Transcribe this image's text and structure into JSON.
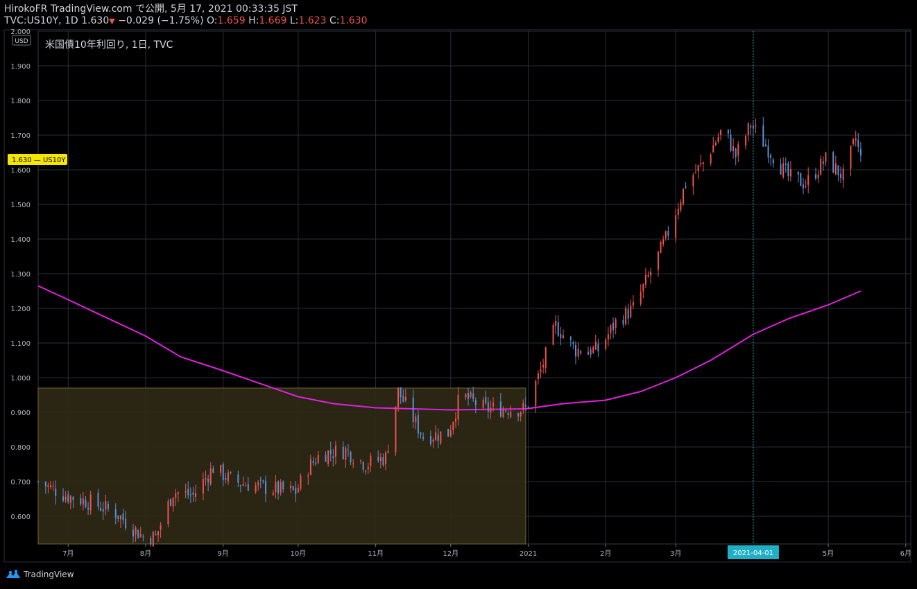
{
  "header": {
    "publish_line": "HirokoFR TradingView.com で公開, 5月 17, 2021 00:33:35 JST",
    "symbol_interval": "TVC:US10Y, 1D",
    "last_price": "1.630",
    "change": "−0.029 (−1.75%)",
    "o_label": "O:",
    "o_value": "1.659",
    "h_label": "H:",
    "h_value": "1.669",
    "l_label": "L:",
    "l_value": "1.623",
    "c_label": "C:",
    "c_value": "1.630"
  },
  "footer": {
    "brand": "TradingView",
    "logo_icon": "tradingview-logo-icon"
  },
  "colors": {
    "up": "#ef5350",
    "down": "#5b8fd6",
    "ma": "#e020e0",
    "box_fill": "#2d2815",
    "box_border": "#6e6634",
    "price_tag": "#f5e600",
    "crosshair_tag": "#1fb0c8"
  },
  "chart_data": {
    "type": "candlestick",
    "title": "米国債10年利回り, 1日, TVC",
    "currency_badge": "USD",
    "price_tag": {
      "value": "1.630",
      "symbol": "US10Y"
    },
    "ylim": [
      0.52,
      2.0
    ],
    "yticks": [
      "0.600",
      "0.700",
      "0.800",
      "0.900",
      "1.000",
      "1.100",
      "1.200",
      "1.300",
      "1.400",
      "1.500",
      "1.600",
      "1.700",
      "1.800",
      "1.900",
      "2.000"
    ],
    "xlim": [
      "2020-06-19",
      "2021-06-03"
    ],
    "xticks": [
      {
        "date": "2020-07-01",
        "label": "7月"
      },
      {
        "date": "2020-08-01",
        "label": "8月"
      },
      {
        "date": "2020-09-01",
        "label": "9月"
      },
      {
        "date": "2020-10-01",
        "label": "10月"
      },
      {
        "date": "2020-11-01",
        "label": "11月"
      },
      {
        "date": "2020-12-01",
        "label": "12月"
      },
      {
        "date": "2021-01-01",
        "label": "2021"
      },
      {
        "date": "2021-02-01",
        "label": "2月"
      },
      {
        "date": "2021-03-01",
        "label": "3月"
      },
      {
        "date": "2021-05-01",
        "label": "5月"
      },
      {
        "date": "2021-06-01",
        "label": "6月"
      }
    ],
    "crosshair": {
      "date": "2021-04-01",
      "label": "2021-04-01"
    },
    "range_box": {
      "from": "2020-06-19",
      "to": "2020-12-31",
      "low": 0.52,
      "high": 0.97
    },
    "close_anchors": [
      [
        "2020-06-19",
        0.7
      ],
      [
        "2020-06-30",
        0.66
      ],
      [
        "2020-07-10",
        0.64
      ],
      [
        "2020-07-20",
        0.61
      ],
      [
        "2020-07-31",
        0.54
      ],
      [
        "2020-08-05",
        0.54
      ],
      [
        "2020-08-12",
        0.67
      ],
      [
        "2020-08-20",
        0.66
      ],
      [
        "2020-08-28",
        0.74
      ],
      [
        "2020-09-05",
        0.7
      ],
      [
        "2020-09-20",
        0.68
      ],
      [
        "2020-09-30",
        0.67
      ],
      [
        "2020-10-05",
        0.74
      ],
      [
        "2020-10-10",
        0.78
      ],
      [
        "2020-10-20",
        0.79
      ],
      [
        "2020-10-28",
        0.75
      ],
      [
        "2020-11-05",
        0.77
      ],
      [
        "2020-11-10",
        0.96
      ],
      [
        "2020-11-20",
        0.83
      ],
      [
        "2020-11-30",
        0.84
      ],
      [
        "2020-12-05",
        0.95
      ],
      [
        "2020-12-15",
        0.91
      ],
      [
        "2020-12-31",
        0.91
      ],
      [
        "2021-01-06",
        1.02
      ],
      [
        "2021-01-12",
        1.15
      ],
      [
        "2021-01-20",
        1.08
      ],
      [
        "2021-01-29",
        1.08
      ],
      [
        "2021-02-05",
        1.16
      ],
      [
        "2021-02-12",
        1.2
      ],
      [
        "2021-02-18",
        1.29
      ],
      [
        "2021-02-25",
        1.4
      ],
      [
        "2021-03-05",
        1.56
      ],
      [
        "2021-03-12",
        1.62
      ],
      [
        "2021-03-20",
        1.72
      ],
      [
        "2021-03-25",
        1.64
      ],
      [
        "2021-03-31",
        1.73
      ],
      [
        "2021-04-06",
        1.67
      ],
      [
        "2021-04-15",
        1.58
      ],
      [
        "2021-04-22",
        1.56
      ],
      [
        "2021-04-30",
        1.63
      ],
      [
        "2021-05-07",
        1.58
      ],
      [
        "2021-05-12",
        1.69
      ],
      [
        "2021-05-14",
        1.63
      ]
    ],
    "moving_average": [
      [
        "2020-06-19",
        1.265
      ],
      [
        "2020-07-01",
        1.225
      ],
      [
        "2020-08-01",
        1.12
      ],
      [
        "2020-08-15",
        1.06
      ],
      [
        "2020-09-01",
        1.02
      ],
      [
        "2020-10-01",
        0.945
      ],
      [
        "2020-10-15",
        0.925
      ],
      [
        "2020-11-01",
        0.913
      ],
      [
        "2020-12-01",
        0.907
      ],
      [
        "2020-12-31",
        0.91
      ],
      [
        "2021-01-15",
        0.925
      ],
      [
        "2021-02-01",
        0.935
      ],
      [
        "2021-02-15",
        0.96
      ],
      [
        "2021-03-01",
        1.0
      ],
      [
        "2021-03-15",
        1.05
      ],
      [
        "2021-04-01",
        1.125
      ],
      [
        "2021-04-15",
        1.17
      ],
      [
        "2021-05-01",
        1.21
      ],
      [
        "2021-05-14",
        1.25
      ]
    ]
  }
}
